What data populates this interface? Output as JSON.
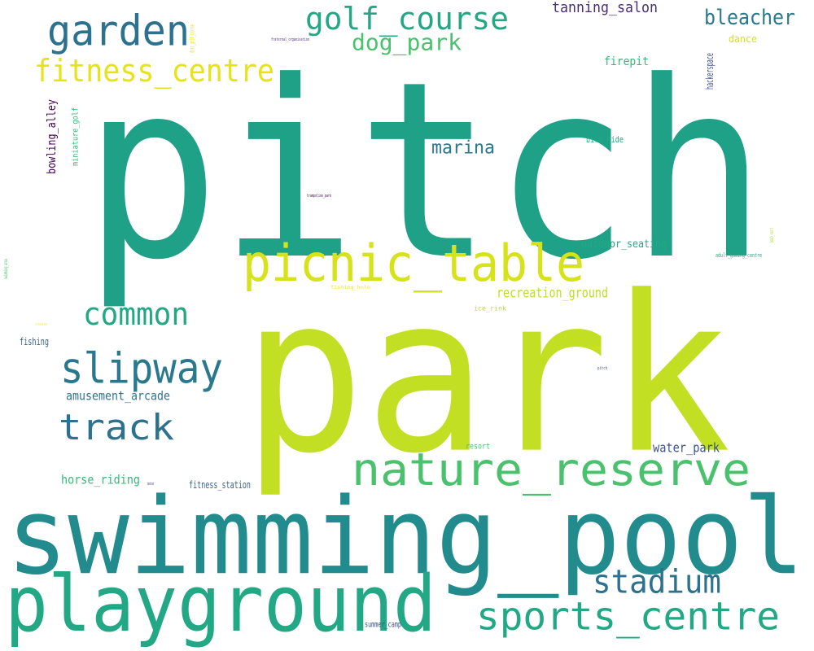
{
  "palette": {
    "c1": "#1fa187",
    "c2": "#c2df23",
    "c3": "#228b8d",
    "c4": "#22a884",
    "c5": "#33638d",
    "c6": "#2a788e",
    "c7": "#e6e419",
    "c8": "#4ac16d",
    "c9": "#3b528b",
    "c10": "#440154",
    "c11": "#35b779",
    "c12": "#2c728e",
    "c13": "#7ad151",
    "c14": "#a2da37",
    "c15": "#d6e21a",
    "c16": "#bddf26",
    "c17": "#472d7b",
    "c18": "#482878",
    "c19": "#fde725",
    "c20": "#46337e",
    "c21": "#3e4989"
  },
  "words": [
    {
      "id": "pitch",
      "text": "pitch",
      "color": "#1fa187"
    },
    {
      "id": "park",
      "text": "park",
      "color": "#c2df23"
    },
    {
      "id": "swimming_pool",
      "text": "swimming_pool",
      "color": "#228b8d"
    },
    {
      "id": "playground",
      "text": "playground",
      "color": "#22a884"
    },
    {
      "id": "garden",
      "text": "garden",
      "color": "#2c728e"
    },
    {
      "id": "golf_course",
      "text": "golf_course",
      "color": "#22a884"
    },
    {
      "id": "fitness_centre",
      "text": "fitness_centre",
      "color": "#e6e419"
    },
    {
      "id": "dog_park",
      "text": "dog_park",
      "color": "#4ac16d"
    },
    {
      "id": "tanning_salon",
      "text": "tanning_salon",
      "color": "#472d7b"
    },
    {
      "id": "bleacher",
      "text": "bleacher",
      "color": "#2a788e"
    },
    {
      "id": "dance",
      "text": "dance",
      "color": "#d6e21a"
    },
    {
      "id": "firepit",
      "text": "firepit",
      "color": "#35b779"
    },
    {
      "id": "hackerspace",
      "text": "hackerspace",
      "color": "#3b528b"
    },
    {
      "id": "bowling_alley",
      "text": "bowling_alley",
      "color": "#440154"
    },
    {
      "id": "miniature_golf",
      "text": "miniature_golf",
      "color": "#35b779"
    },
    {
      "id": "marina",
      "text": "marina",
      "color": "#2a788e"
    },
    {
      "id": "bird_hide",
      "text": "bird_hide",
      "color": "#22a884"
    },
    {
      "id": "picnic_table",
      "text": "picnic_table",
      "color": "#d6e21a"
    },
    {
      "id": "outdoor_seating",
      "text": "outdoor_seating",
      "color": "#22a884"
    },
    {
      "id": "adult_gaming_centre",
      "text": "adult_gaming_centre",
      "color": "#22a884"
    },
    {
      "id": "common",
      "text": "common",
      "color": "#22a884"
    },
    {
      "id": "recreation_ground",
      "text": "recreation_ground",
      "color": "#bddf26"
    },
    {
      "id": "ice_rink",
      "text": "ice_rink",
      "color": "#bddf26"
    },
    {
      "id": "fishing_hole",
      "text": "fishing_hole",
      "color": "#fde725"
    },
    {
      "id": "trampoline_park",
      "text": "trampoline_park",
      "color": "#440154"
    },
    {
      "id": "fraternal_organisation",
      "text": "fraternal_organisation",
      "color": "#472d7b"
    },
    {
      "id": "fishing",
      "text": "fishing",
      "color": "#33638d"
    },
    {
      "id": "slipway",
      "text": "slipway",
      "color": "#2a788e"
    },
    {
      "id": "amusement_arcade",
      "text": "amusement_arcade",
      "color": "#2c728e"
    },
    {
      "id": "track",
      "text": "track",
      "color": "#2c728e"
    },
    {
      "id": "nature_reserve",
      "text": "nature_reserve",
      "color": "#4ac16d"
    },
    {
      "id": "horse_riding",
      "text": "horse_riding",
      "color": "#35b779"
    },
    {
      "id": "fitness_station",
      "text": "fitness_station",
      "color": "#33638d"
    },
    {
      "id": "resort",
      "text": "resort",
      "color": "#4ac16d"
    },
    {
      "id": "water_park",
      "text": "water_park",
      "color": "#3b528b"
    },
    {
      "id": "stadium",
      "text": "stadium",
      "color": "#2c728e"
    },
    {
      "id": "sports_centre",
      "text": "sports_centre",
      "color": "#22a884"
    },
    {
      "id": "summer_camp",
      "text": "summer_camp",
      "color": "#3b528b"
    },
    {
      "id": "disc_golf_course",
      "text": "disc_golf_course",
      "color": "#e6e419"
    },
    {
      "id": "swimming_area",
      "text": "swimming_area",
      "color": "#4ac16d"
    },
    {
      "id": "yes",
      "text": "yes",
      "color": "#e6e419"
    },
    {
      "id": "pitch2",
      "text": "pitch",
      "color": "#3b528b"
    },
    {
      "id": "beach_resort",
      "text": "beach_resort",
      "color": "#a2da37"
    },
    {
      "id": "sauna",
      "text": "sauna",
      "color": "#fde725"
    },
    {
      "id": "bandstand",
      "text": "bandstand",
      "color": "#46337e"
    },
    {
      "id": "outdoor",
      "text": "outdoor",
      "color": "#35b779"
    }
  ]
}
